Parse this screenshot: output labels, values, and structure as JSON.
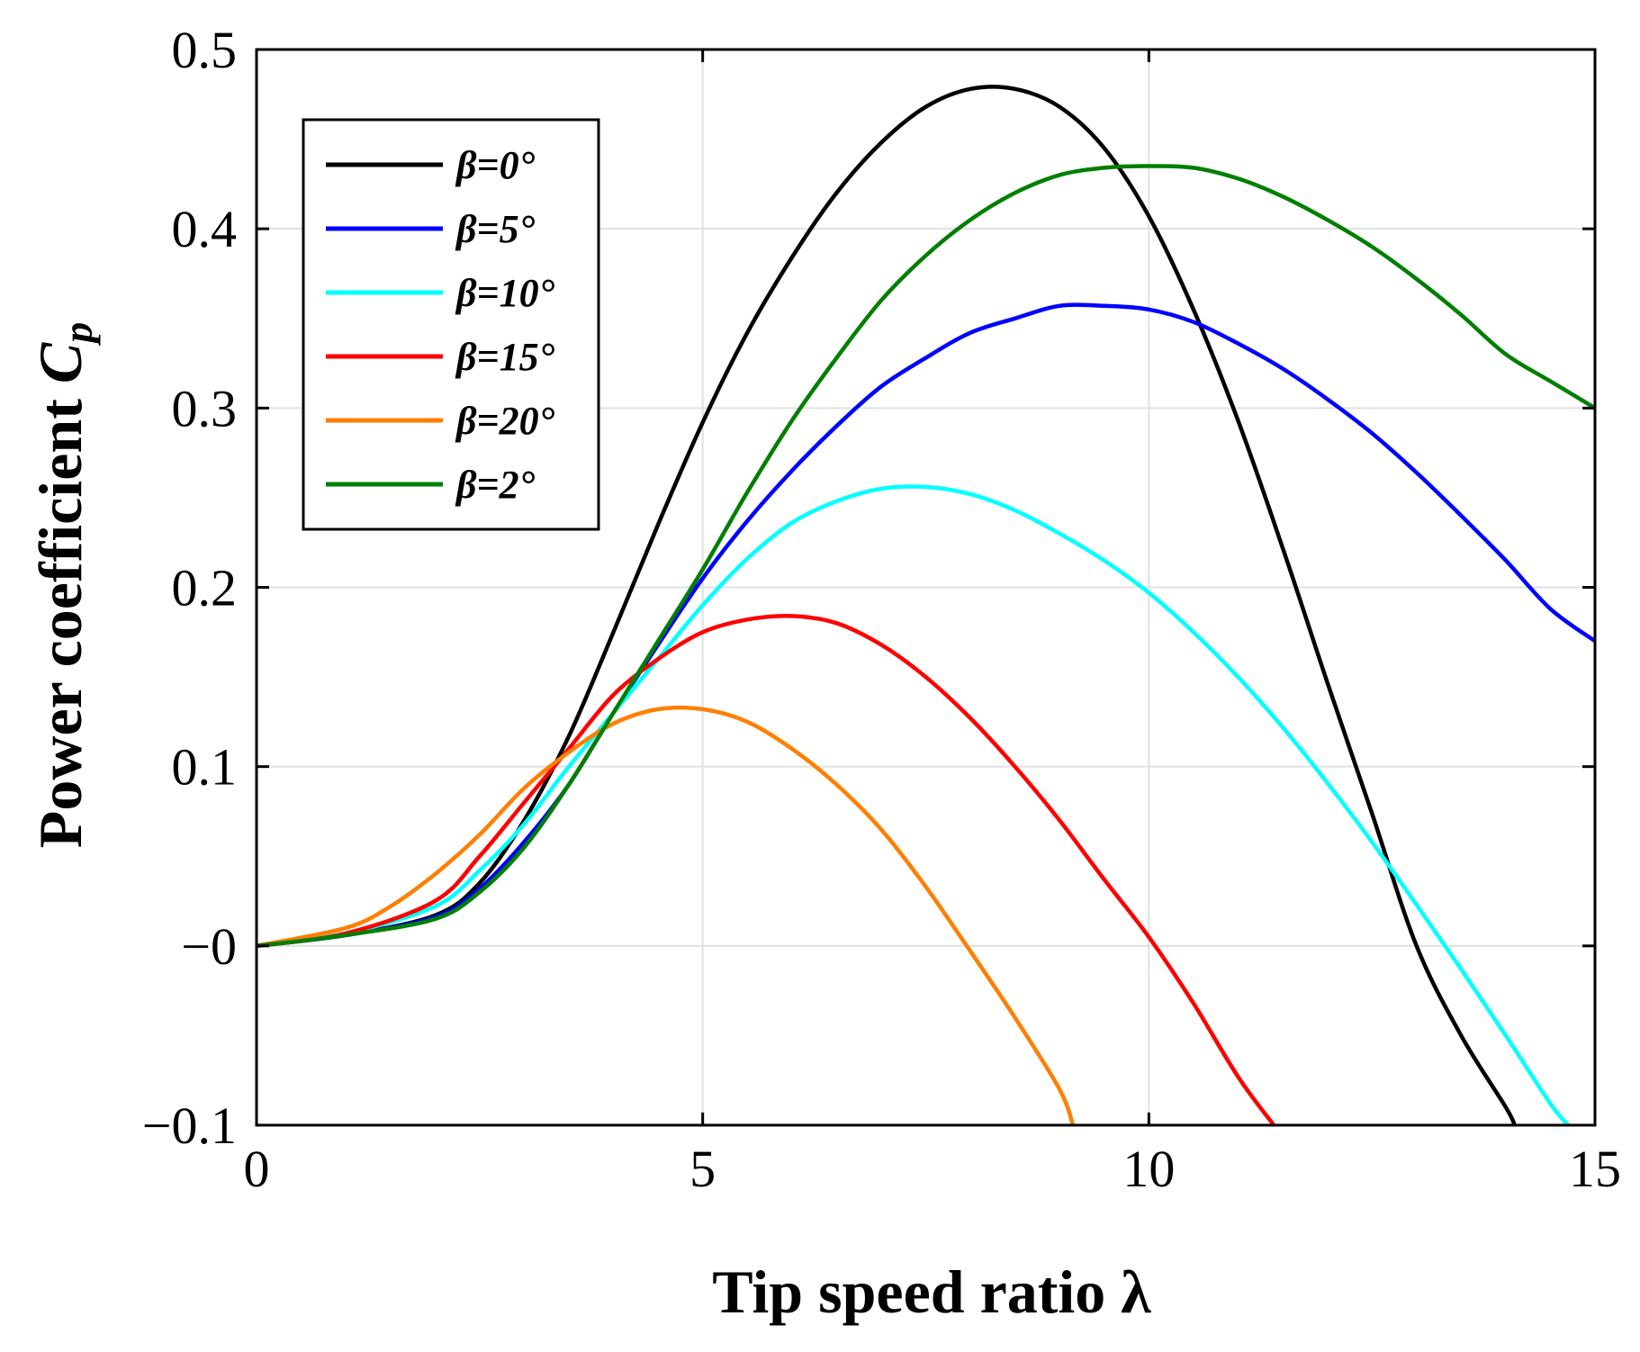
{
  "chart_data": {
    "type": "line",
    "xlabel": "Tip speed ratio λ",
    "ylabel_main": "Power coefficient ",
    "ylabel_symbol": "C",
    "ylabel_subscript": "p",
    "xlim": [
      0,
      15
    ],
    "ylim": [
      -0.1,
      0.5
    ],
    "grid": true,
    "legend_position": "top-left",
    "x_ticks": [
      0,
      5,
      10,
      15
    ],
    "x_tick_labels": [
      "0",
      "5",
      "10",
      "15"
    ],
    "y_ticks": [
      -0.1,
      0,
      0.1,
      0.2,
      0.3,
      0.4,
      0.5
    ],
    "y_tick_labels": [
      "−0.1",
      "−0",
      "0.1",
      "0.2",
      "0.3",
      "0.4",
      "0.5"
    ],
    "series": [
      {
        "name": "β=0°",
        "color": "#000000",
        "x": [
          0,
          1,
          2,
          2.5,
          3,
          3.5,
          4,
          4.5,
          5,
          5.5,
          6,
          6.5,
          7,
          7.5,
          8,
          8.5,
          9,
          9.5,
          10,
          10.5,
          11,
          11.5,
          12,
          12.5,
          13,
          13.5,
          14,
          14.1
        ],
        "y": [
          0,
          0.006,
          0.017,
          0.035,
          0.07,
          0.117,
          0.175,
          0.235,
          0.292,
          0.342,
          0.384,
          0.42,
          0.448,
          0.468,
          0.478,
          0.478,
          0.468,
          0.445,
          0.407,
          0.355,
          0.293,
          0.222,
          0.147,
          0.074,
          0.0,
          -0.05,
          -0.09,
          -0.1
        ]
      },
      {
        "name": "β=5°",
        "color": "#0000ff",
        "x": [
          0,
          1,
          2,
          2.5,
          3,
          3.5,
          4,
          4.5,
          5,
          5.5,
          6,
          6.5,
          7,
          7.5,
          8,
          8.5,
          9,
          9.5,
          10,
          10.5,
          11,
          11.5,
          12,
          12.5,
          13,
          13.5,
          14,
          14.5,
          15
        ],
        "y": [
          0,
          0.006,
          0.016,
          0.032,
          0.058,
          0.09,
          0.13,
          0.168,
          0.205,
          0.237,
          0.265,
          0.29,
          0.312,
          0.328,
          0.342,
          0.35,
          0.357,
          0.357,
          0.355,
          0.348,
          0.336,
          0.322,
          0.305,
          0.286,
          0.264,
          0.24,
          0.215,
          0.188,
          0.17
        ]
      },
      {
        "name": "β=10°",
        "color": "#00ffff",
        "x": [
          0,
          1,
          2,
          2.5,
          3,
          3.5,
          4,
          4.5,
          5,
          5.5,
          6,
          6.5,
          7,
          7.5,
          8,
          8.5,
          9,
          9.5,
          10,
          10.5,
          11,
          11.5,
          12,
          12.5,
          13,
          13.5,
          14,
          14.5,
          14.7
        ],
        "y": [
          0,
          0.007,
          0.022,
          0.042,
          0.068,
          0.1,
          0.13,
          0.16,
          0.19,
          0.216,
          0.236,
          0.248,
          0.255,
          0.256,
          0.252,
          0.243,
          0.23,
          0.215,
          0.197,
          0.175,
          0.15,
          0.122,
          0.091,
          0.058,
          0.023,
          -0.013,
          -0.05,
          -0.088,
          -0.1
        ]
      },
      {
        "name": "β=15°",
        "color": "#ff0000",
        "x": [
          0,
          1,
          2,
          2.5,
          3,
          3.5,
          4,
          4.5,
          5,
          5.5,
          6,
          6.5,
          7,
          7.5,
          8,
          8.5,
          9,
          9.5,
          10,
          10.5,
          11,
          11.4
        ],
        "y": [
          0,
          0.007,
          0.025,
          0.05,
          0.08,
          0.11,
          0.14,
          0.16,
          0.175,
          0.182,
          0.184,
          0.18,
          0.168,
          0.15,
          0.127,
          0.1,
          0.07,
          0.037,
          0.005,
          -0.032,
          -0.073,
          -0.1
        ]
      },
      {
        "name": "β=20°",
        "color": "#ff7f00",
        "x": [
          0,
          1,
          1.5,
          2,
          2.5,
          3,
          3.5,
          4,
          4.5,
          5,
          5.5,
          6,
          6.5,
          7,
          7.5,
          8,
          8.5,
          9,
          9.15
        ],
        "y": [
          0,
          0.01,
          0.022,
          0.04,
          0.062,
          0.088,
          0.108,
          0.124,
          0.132,
          0.132,
          0.125,
          0.11,
          0.09,
          0.065,
          0.033,
          -0.003,
          -0.04,
          -0.08,
          -0.1
        ]
      },
      {
        "name": "β=2°",
        "color": "#007f00",
        "x": [
          0,
          1,
          2,
          2.5,
          3,
          3.5,
          4,
          4.5,
          5,
          5.5,
          6,
          6.5,
          7,
          7.5,
          8,
          8.5,
          9,
          9.5,
          10,
          10.5,
          11,
          11.5,
          12,
          12.5,
          13,
          13.5,
          14,
          14.5,
          15
        ],
        "y": [
          0,
          0.006,
          0.015,
          0.03,
          0.055,
          0.09,
          0.13,
          0.17,
          0.21,
          0.253,
          0.293,
          0.328,
          0.36,
          0.385,
          0.405,
          0.42,
          0.43,
          0.434,
          0.435,
          0.434,
          0.428,
          0.418,
          0.405,
          0.39,
          0.372,
          0.352,
          0.33,
          0.315,
          0.3
        ]
      }
    ]
  }
}
